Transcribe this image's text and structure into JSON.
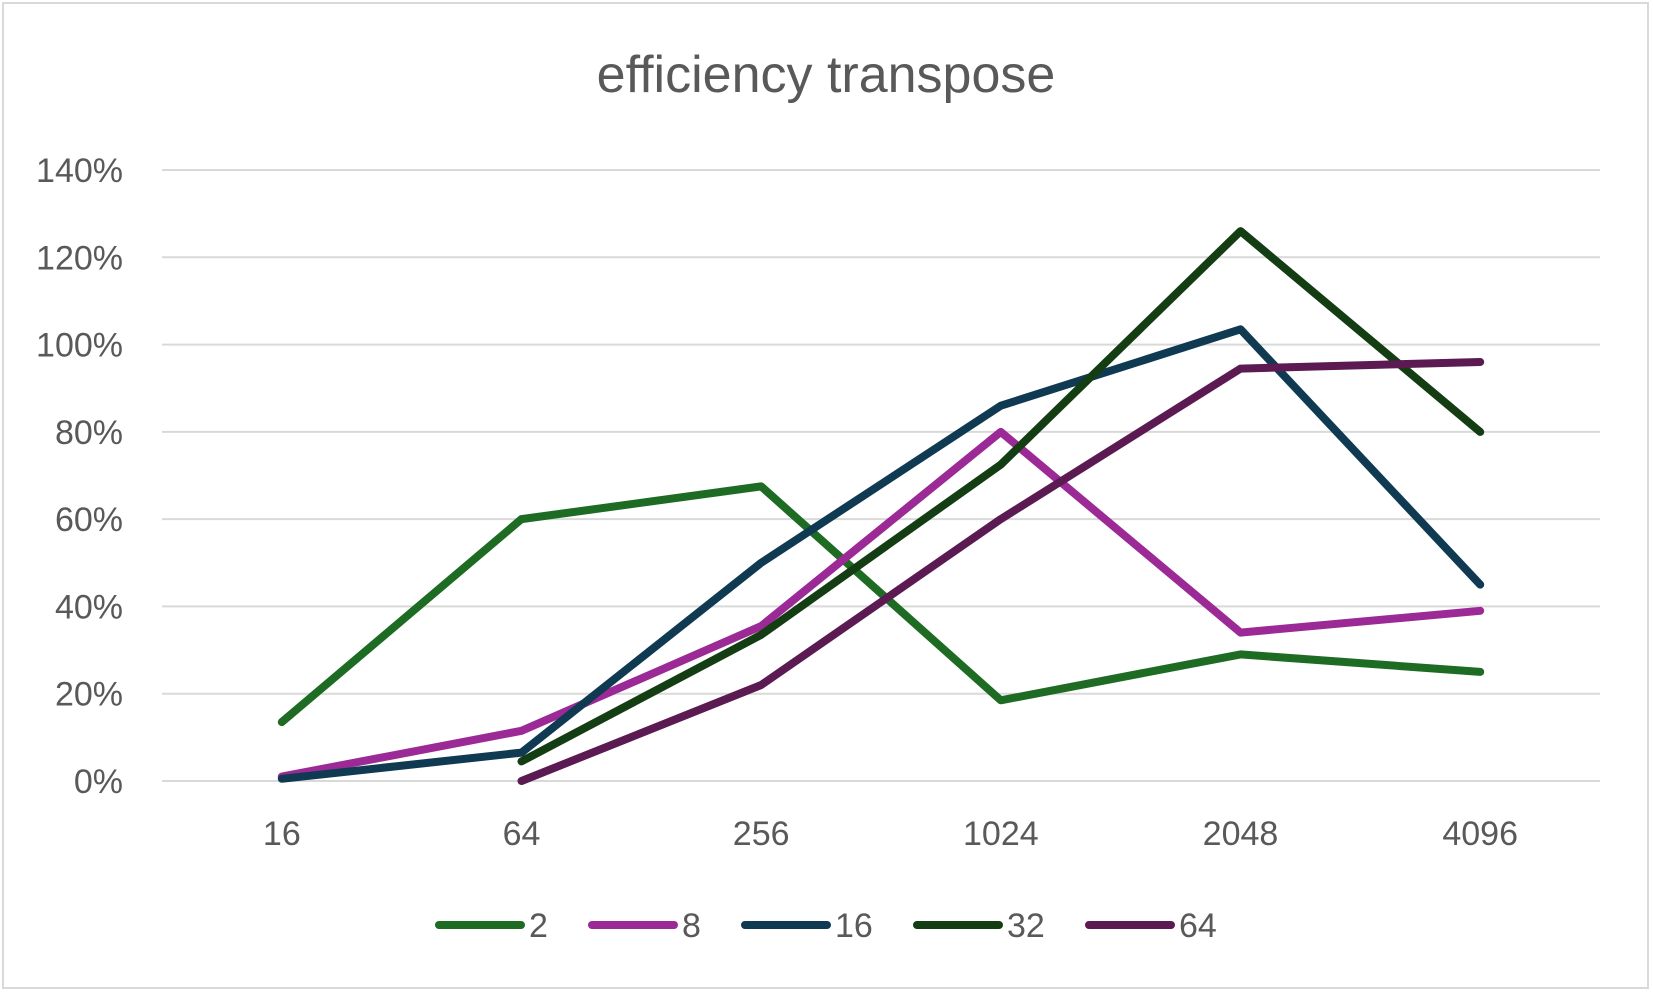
{
  "chart_data": {
    "type": "line",
    "title": "efficiency transpose",
    "xlabel": "",
    "ylabel": "",
    "categories": [
      "16",
      "64",
      "256",
      "1024",
      "2048",
      "4096"
    ],
    "y_ticks": [
      "0%",
      "20%",
      "40%",
      "60%",
      "80%",
      "100%",
      "120%",
      "140%"
    ],
    "ylim": [
      0,
      140
    ],
    "grid": true,
    "legend_position": "bottom",
    "series": [
      {
        "name": "2",
        "color": "#1e6b24",
        "values": [
          13.5,
          60,
          67.5,
          18.5,
          29,
          25
        ]
      },
      {
        "name": "8",
        "color": "#9c2a96",
        "values": [
          1,
          11.5,
          35.5,
          80,
          34,
          39
        ]
      },
      {
        "name": "16",
        "color": "#0f3a52",
        "values": [
          0.5,
          6.5,
          50,
          86,
          103.5,
          45
        ]
      },
      {
        "name": "32",
        "color": "#143d14",
        "values": [
          null,
          4.5,
          33.5,
          72.5,
          126,
          80
        ]
      },
      {
        "name": "64",
        "color": "#5c1a52",
        "values": [
          null,
          0,
          22,
          60,
          94.5,
          96
        ]
      }
    ]
  }
}
